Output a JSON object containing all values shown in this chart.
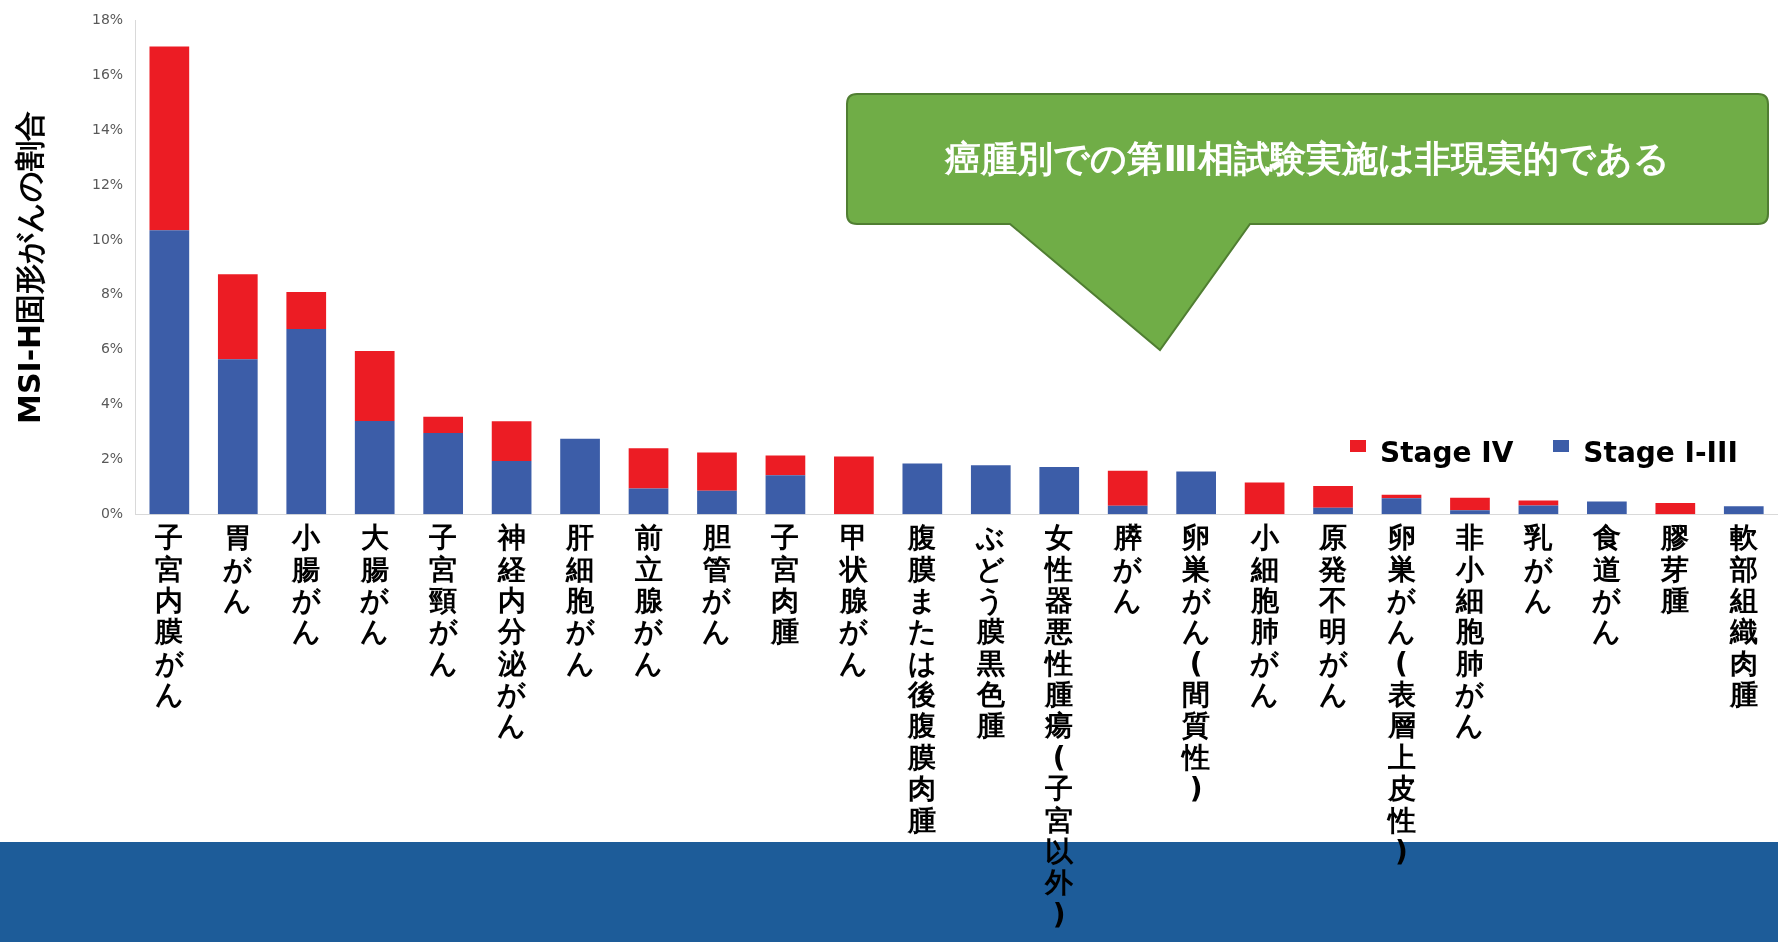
{
  "chart_data": {
    "type": "bar",
    "stacked": true,
    "ylabel": "MSI-H固形がんの割合",
    "categories": [
      "子宮内膜がん",
      "胃がん",
      "小腸がん",
      "大腸がん",
      "子宮頸がん",
      "神経内分泌がん",
      "肝細胞がん",
      "前立腺がん",
      "胆管がん",
      "子宮肉腫",
      "甲状腺がん",
      "腹膜または後腹膜肉腫",
      "ぶどう膜黒色腫",
      "女性器悪性腫瘍(子宮以外)",
      "膵がん",
      "卵巣がん(間質性)",
      "小細胞肺がん",
      "原発不明がん",
      "卵巣がん(表層上皮性)",
      "非小細胞肺がん",
      "乳がん",
      "食道がん",
      "膠芽腫",
      "軟部組織肉腫"
    ],
    "series": [
      {
        "name": "Stage I-III",
        "color": "#3c5da8",
        "values": [
          10.35,
          5.65,
          6.75,
          3.4,
          2.96,
          1.94,
          2.75,
          0.94,
          0.86,
          1.42,
          0,
          1.85,
          1.79,
          1.72,
          0.31,
          1.56,
          0,
          0.24,
          0.59,
          0.15,
          0.32,
          0.47,
          0,
          0.29
        ]
      },
      {
        "name": "Stage IV",
        "color": "#ec1c24",
        "values": [
          6.7,
          3.1,
          1.35,
          2.55,
          0.6,
          1.45,
          0,
          1.47,
          1.39,
          0.72,
          2.11,
          0,
          0,
          0,
          1.28,
          0,
          1.16,
          0.79,
          0.12,
          0.45,
          0.18,
          0,
          0.41,
          0
        ]
      }
    ],
    "ylim": [
      0,
      18
    ],
    "yticks": [
      {
        "value": 0,
        "label": "0%"
      },
      {
        "value": 2,
        "label": "2%"
      },
      {
        "value": 4,
        "label": "4%"
      },
      {
        "value": 6,
        "label": "6%"
      },
      {
        "value": 8,
        "label": "8%"
      },
      {
        "value": 10,
        "label": "10%"
      },
      {
        "value": 12,
        "label": "12%"
      },
      {
        "value": 14,
        "label": "14%"
      },
      {
        "value": 16,
        "label": "16%"
      },
      {
        "value": 18,
        "label": "18%"
      }
    ],
    "grid": false,
    "legend": "right",
    "annotations": [
      "癌腫別での第Ⅲ相試験実施は非現実的である"
    ]
  }
}
